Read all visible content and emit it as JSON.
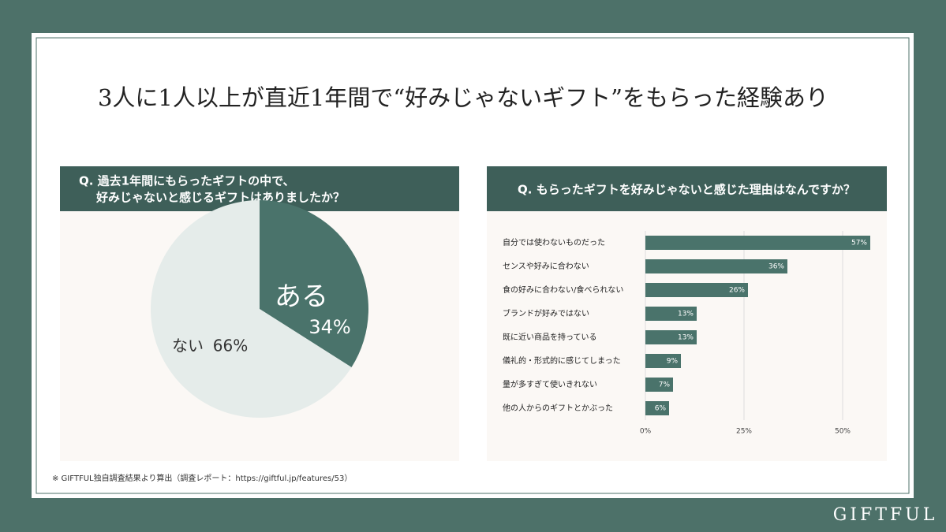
{
  "title": "3人に1人以上が直近1年間で“好みじゃないギフト”をもらった経験あり",
  "chart_data": [
    {
      "type": "pie",
      "title": [
        "Q. 過去1年間にもらったギフトの中で、",
        "好みじゃないと感じるギフトはありましたか？"
      ],
      "categories": [
        "ある",
        "ない"
      ],
      "values": [
        34,
        66
      ],
      "value_labels": [
        "34%",
        "66%"
      ],
      "colors": [
        "#4a736b",
        "#e5ecea"
      ]
    },
    {
      "type": "bar",
      "orientation": "horizontal",
      "title": [
        "Q. もらったギフトを好みじゃないと感じた理由はなんですか？"
      ],
      "categories": [
        "自分では使わないものだった",
        "センスや好みに合わない",
        "食の好みに合わない/食べられない",
        "ブランドが好みではない",
        "既に近い商品を持っている",
        "儀礼的・形式的に感じてしまった",
        "量が多すぎて使いきれない",
        "他の人からのギフトとかぶった"
      ],
      "values": [
        57,
        36,
        26,
        13,
        13,
        9,
        7,
        6
      ],
      "value_labels": [
        "57%",
        "36%",
        "26%",
        "13%",
        "13%",
        "9%",
        "7%",
        "6%"
      ],
      "color": "#4a736b",
      "xlim": [
        0,
        58
      ],
      "xticks": [
        {
          "value": 0,
          "label": "0%"
        },
        {
          "value": 25,
          "label": "25%"
        },
        {
          "value": 50,
          "label": "50%"
        }
      ],
      "grid": true
    }
  ],
  "footnote": "※ GIFTFUL独自調査結果より算出（調査レポート：https://giftful.jp/features/53）",
  "brand": "GIFTFUL"
}
